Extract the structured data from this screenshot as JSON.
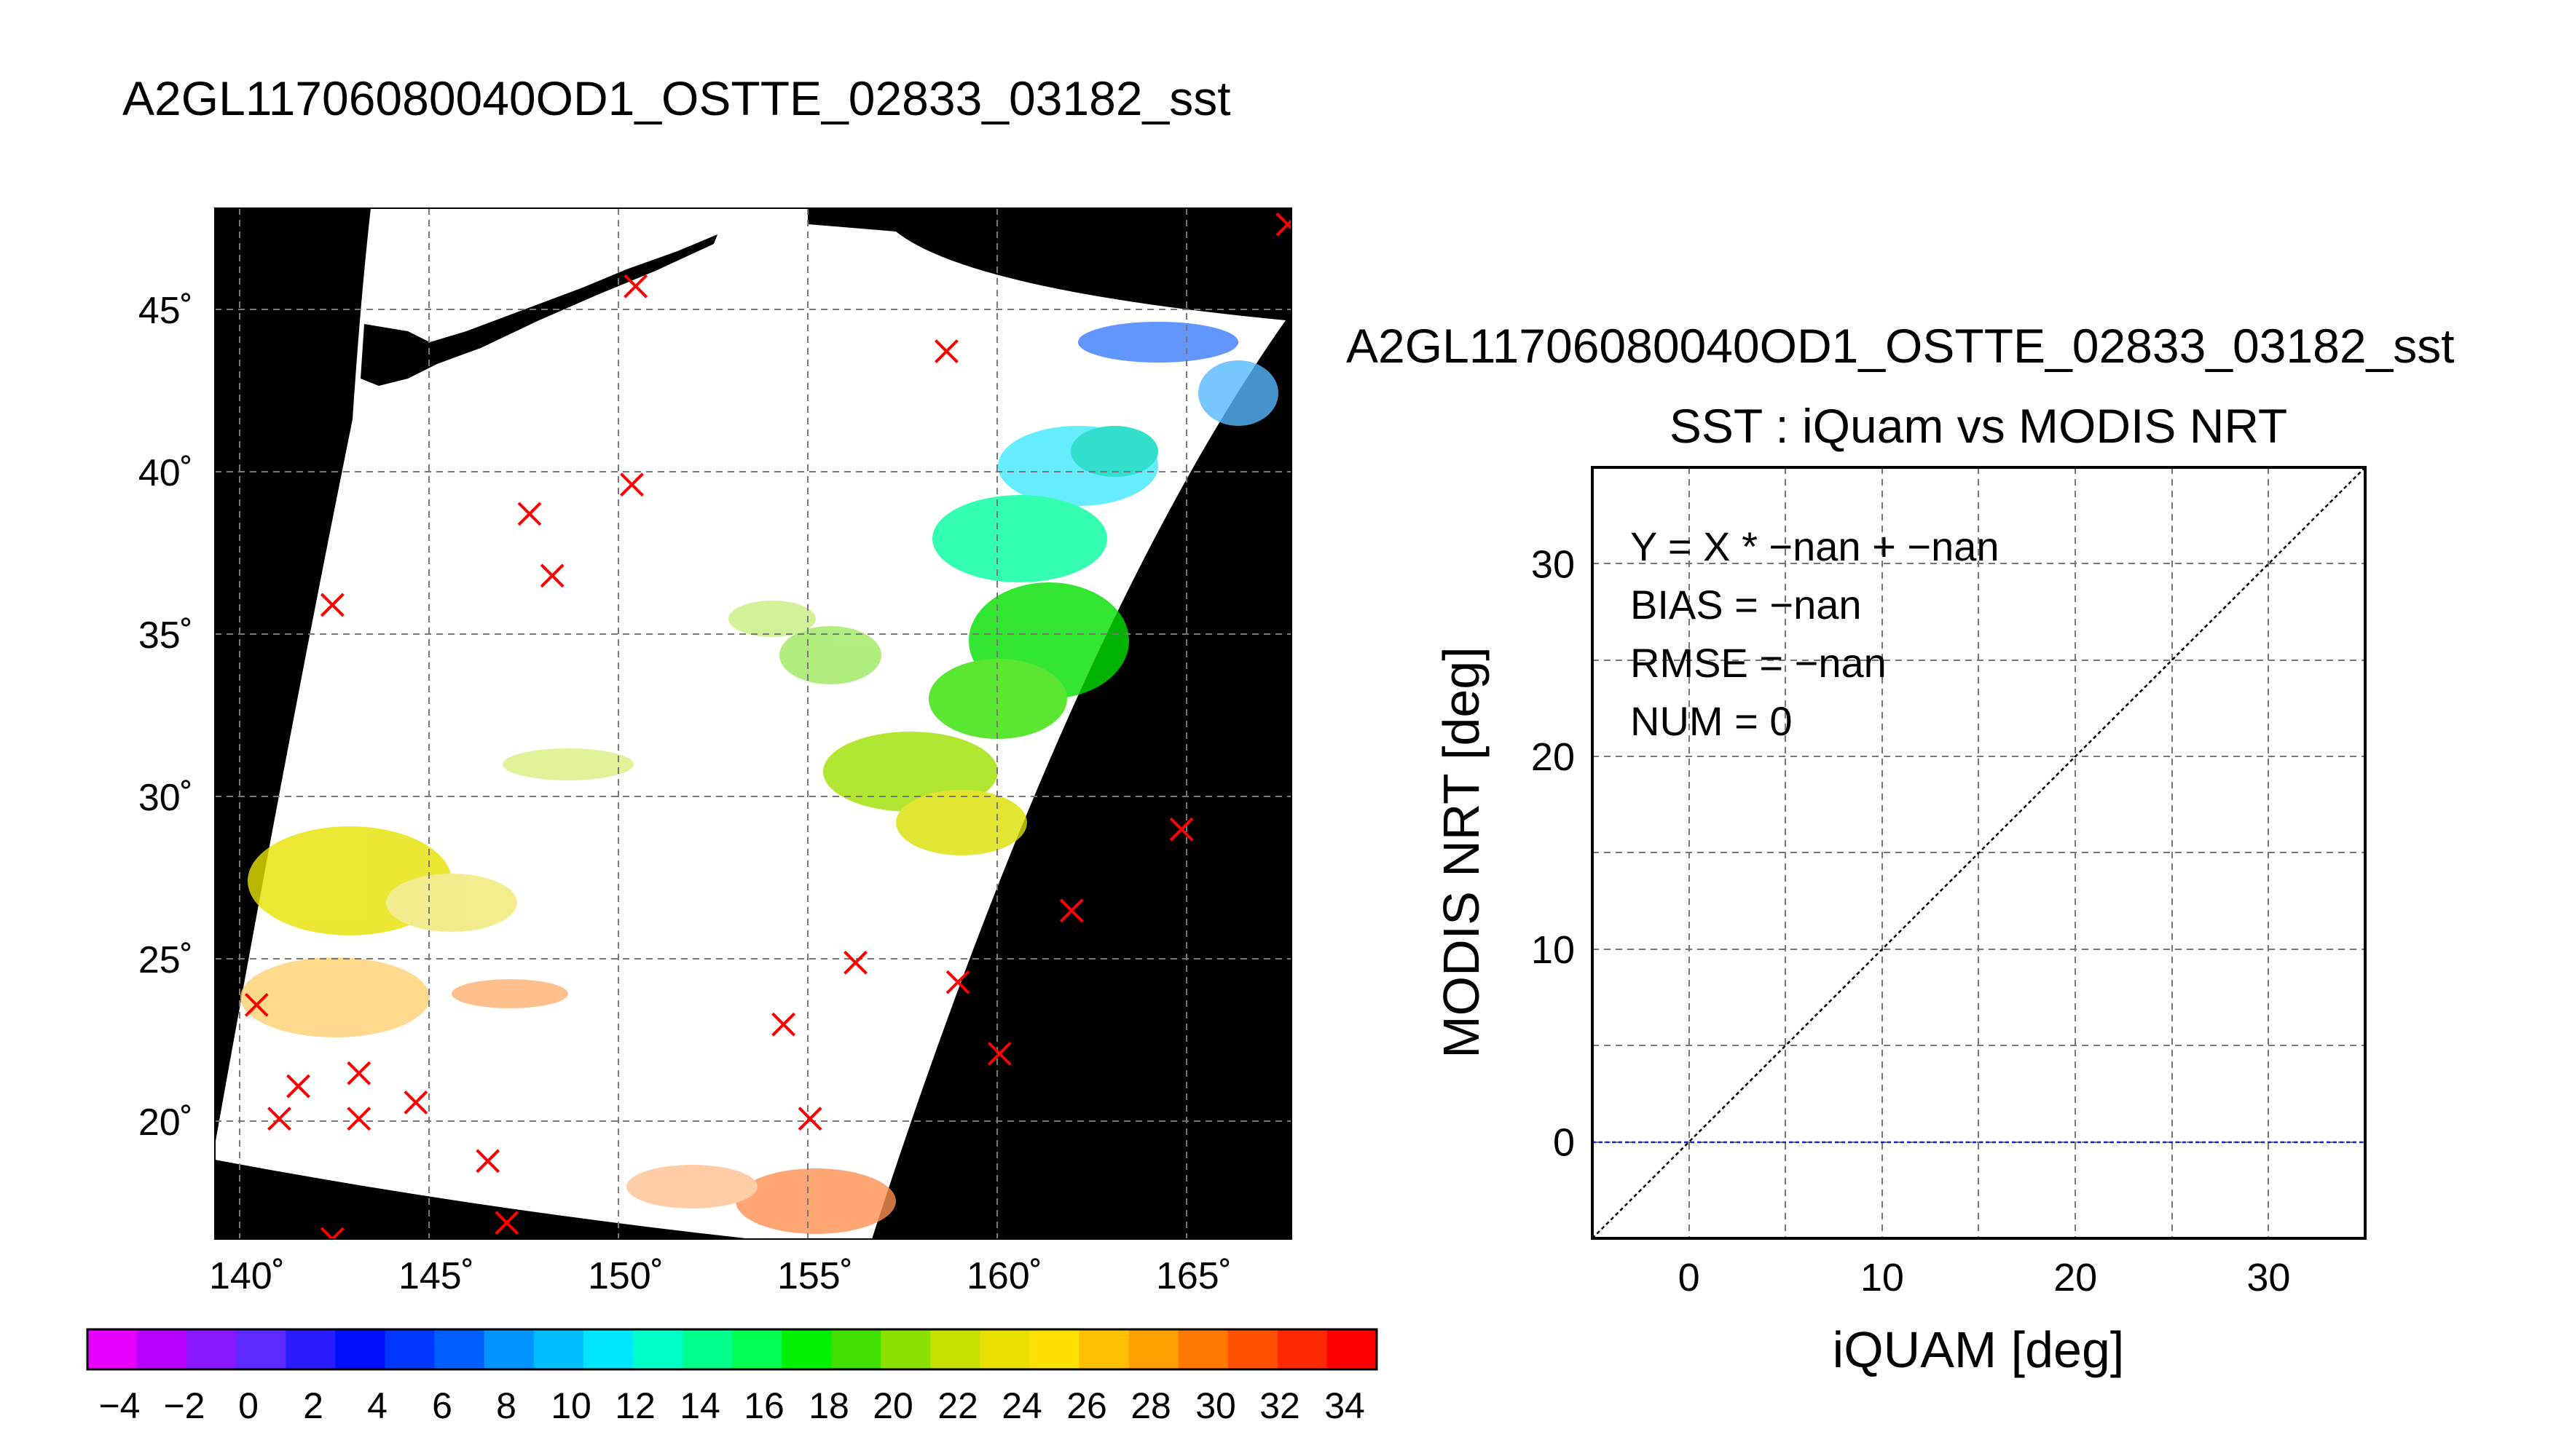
{
  "map_title": "A2GL11706080040OD1_OSTTE_02833_03182_sst",
  "chart_data": [
    {
      "type": "map",
      "title": "A2GL11706080040OD1_OSTTE_02833_03182_sst",
      "x_ticks": [
        "140˚",
        "145˚",
        "150˚",
        "155˚",
        "160˚",
        "165˚"
      ],
      "x_tick_values": [
        140,
        145,
        150,
        155,
        160,
        165
      ],
      "y_ticks": [
        "20˚",
        "25˚",
        "30˚",
        "35˚",
        "40˚",
        "45˚"
      ],
      "y_tick_values": [
        20,
        25,
        30,
        35,
        40,
        45
      ],
      "xlim": [
        139.4,
        167.8
      ],
      "ylim": [
        16.3,
        48.0
      ],
      "grid": true,
      "markers": [
        {
          "lon": 150.5,
          "lat": 45.6
        },
        {
          "lon": 158.7,
          "lat": 43.6
        },
        {
          "lon": 150.4,
          "lat": 39.5
        },
        {
          "lon": 147.7,
          "lat": 38.6
        },
        {
          "lon": 148.3,
          "lat": 36.7
        },
        {
          "lon": 142.5,
          "lat": 35.8
        },
        {
          "lon": 164.9,
          "lat": 28.9
        },
        {
          "lon": 162.0,
          "lat": 26.4
        },
        {
          "lon": 156.3,
          "lat": 24.8
        },
        {
          "lon": 140.5,
          "lat": 23.5
        },
        {
          "lon": 159.0,
          "lat": 24.2
        },
        {
          "lon": 154.4,
          "lat": 22.9
        },
        {
          "lon": 143.2,
          "lat": 21.4
        },
        {
          "lon": 141.6,
          "lat": 21.0
        },
        {
          "lon": 160.1,
          "lat": 22.0
        },
        {
          "lon": 144.7,
          "lat": 20.5
        },
        {
          "lon": 141.1,
          "lat": 20.0
        },
        {
          "lon": 143.2,
          "lat": 20.0
        },
        {
          "lon": 155.1,
          "lat": 20.0
        },
        {
          "lon": 146.6,
          "lat": 18.7
        },
        {
          "lon": 147.1,
          "lat": 16.8
        },
        {
          "lon": 142.5,
          "lat": 16.3
        },
        {
          "lon": 167.7,
          "lat": 47.5
        }
      ],
      "marker_color": "#ff0000"
    },
    {
      "type": "colorbar",
      "tick_labels": [
        "−4",
        "−2",
        "0",
        "2",
        "4",
        "6",
        "8",
        "10",
        "12",
        "14",
        "16",
        "18",
        "20",
        "22",
        "24",
        "26",
        "28",
        "30",
        "32",
        "34"
      ],
      "range": [
        -5,
        35
      ],
      "colors": [
        "#e800ff",
        "#b800ff",
        "#8a18ff",
        "#5c2aff",
        "#2a1cff",
        "#0010ff",
        "#0038ff",
        "#0060ff",
        "#0094ff",
        "#00bcff",
        "#00e6ff",
        "#00ffc8",
        "#00ff8c",
        "#00ff50",
        "#00f000",
        "#40e000",
        "#8ce000",
        "#c8e000",
        "#e8e000",
        "#ffe000",
        "#ffc000",
        "#ffa000",
        "#ff7800",
        "#ff5000",
        "#ff2800",
        "#ff0000"
      ]
    },
    {
      "type": "scatter",
      "title": "A2GL11706080040OD1_OSTTE_02833_03182_sst",
      "subtitle": "SST : iQuam vs MODIS NRT",
      "xlabel": "iQUAM [deg]",
      "ylabel": "MODIS NRT [deg]",
      "xlim": [
        -5,
        35
      ],
      "ylim": [
        -5,
        35
      ],
      "x_ticks": [
        0,
        10,
        20,
        30
      ],
      "y_ticks": [
        0,
        10,
        20,
        30
      ],
      "grid": true,
      "series": [],
      "annotations": [
        "Y = X * −nan + −nan",
        "BIAS = −nan",
        "RMSE = −nan",
        "NUM = 0"
      ],
      "reference_lines": [
        {
          "kind": "one-to-one",
          "color": "#000000"
        },
        {
          "kind": "horizontal",
          "y": 0,
          "color": "#2020c0"
        }
      ]
    }
  ]
}
